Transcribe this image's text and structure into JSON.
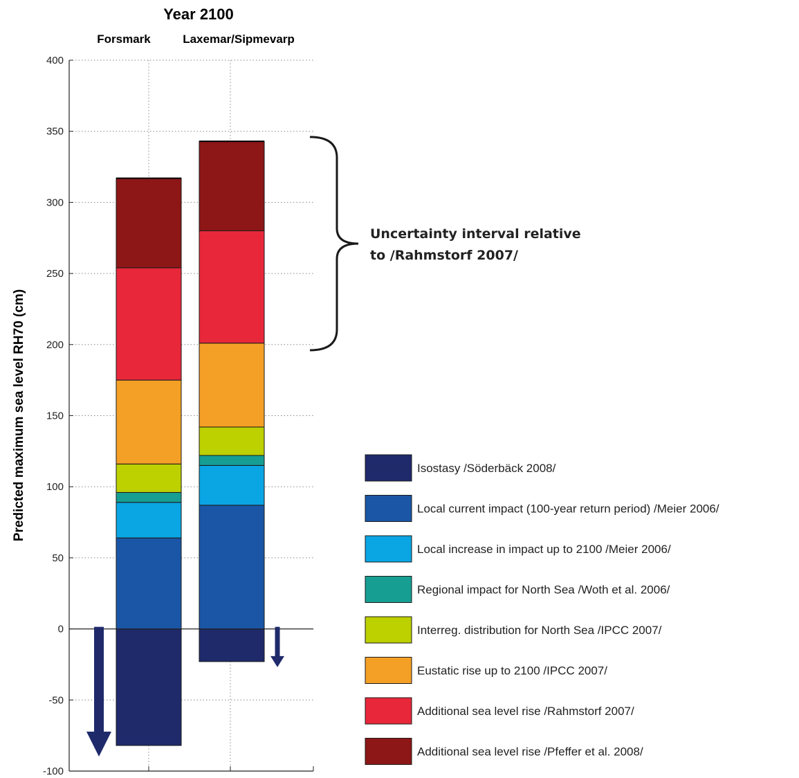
{
  "chart_data": {
    "type": "bar",
    "stacked": true,
    "title": "Year 2100",
    "categories": [
      "Forsmark",
      "Laxemar/Sipmevarp"
    ],
    "ylabel": "Predicted maximum sea level RH70 (cm)",
    "ylim": [
      -100,
      400
    ],
    "yticks": [
      -100,
      -50,
      0,
      50,
      100,
      150,
      200,
      250,
      300,
      350,
      400
    ],
    "grid": true,
    "legend_position": "bottom-right",
    "series": [
      {
        "name": "Isostasy /Söderbäck 2008/",
        "color": "#1f2a6b",
        "values": [
          -82,
          -23
        ]
      },
      {
        "name": "Local current impact (100-year return period) /Meier 2006/",
        "color": "#1b56a6",
        "values": [
          64,
          87
        ]
      },
      {
        "name": "Local increase in impact up to 2100 /Meier 2006/",
        "color": "#0aa5e3",
        "values": [
          25,
          28
        ]
      },
      {
        "name": "Regional impact for North Sea /Woth et al. 2006/",
        "color": "#169e93",
        "values": [
          7,
          7
        ]
      },
      {
        "name": "Interreg. distribution for North Sea /IPCC 2007/",
        "color": "#bdd000",
        "values": [
          20,
          20
        ]
      },
      {
        "name": "Eustatic rise up to 2100 /IPCC 2007/",
        "color": "#f4a026",
        "values": [
          59,
          59
        ]
      },
      {
        "name": "Additional sea level rise /Rahmstorf 2007/",
        "color": "#e8283a",
        "values": [
          79,
          79
        ]
      },
      {
        "name": "Additional sea level rise /Pfeffer et al. 2008/",
        "color": "#8c1716",
        "values": [
          63,
          63
        ]
      }
    ],
    "annotation": {
      "line1": "Uncertainty interval relative",
      "line2": "to /Rahmstorf 2007/",
      "range": [
        196,
        346
      ]
    },
    "isostasy_arrows": [
      -82,
      -23
    ]
  }
}
